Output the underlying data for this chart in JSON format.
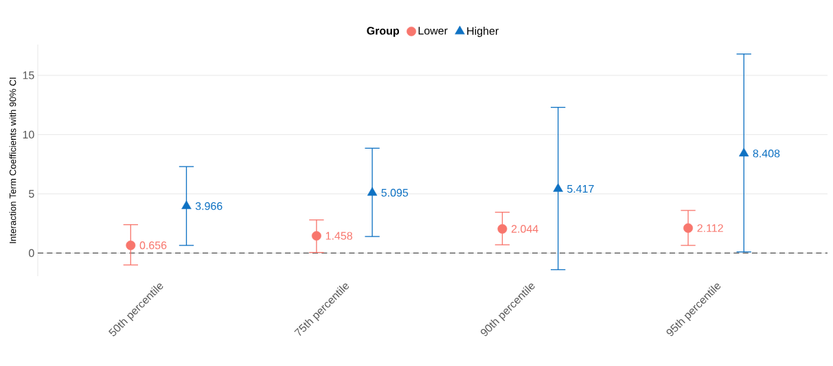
{
  "chart_data": {
    "type": "scatter",
    "ylabel": "Interaction Term Coefficients with 90% CI",
    "legend_title": "Group",
    "legend": "top",
    "grid": "y",
    "categories": [
      "50th percentile",
      "75th percentile",
      "90th percentile",
      "95th percentile"
    ],
    "series": [
      {
        "name": "Lower",
        "color": "#f8766d",
        "marker": "circle",
        "values": [
          0.656,
          1.458,
          2.044,
          2.112
        ],
        "errors": [
          [
            -1.0,
            2.4
          ],
          [
            0.05,
            2.8
          ],
          [
            0.7,
            3.45
          ],
          [
            0.65,
            3.6
          ]
        ],
        "value_labels": [
          "0.656",
          "1.458",
          "2.044",
          "2.112"
        ]
      },
      {
        "name": "Higher",
        "color": "#0f72c3",
        "marker": "triangle",
        "values": [
          3.966,
          5.095,
          5.417,
          8.408
        ],
        "errors": [
          [
            0.65,
            7.3
          ],
          [
            1.4,
            8.85
          ],
          [
            -1.4,
            12.3
          ],
          [
            0.1,
            16.8
          ]
        ],
        "value_labels": [
          "3.966",
          "5.095",
          "5.417",
          "8.408"
        ]
      }
    ],
    "ylim": [
      -1.95,
      17.6
    ],
    "yticks": [
      0,
      5,
      10,
      15
    ],
    "ref_lines": [
      {
        "axis": "y",
        "value": 0,
        "color": "#666666",
        "line_style": "dashed"
      }
    ]
  }
}
